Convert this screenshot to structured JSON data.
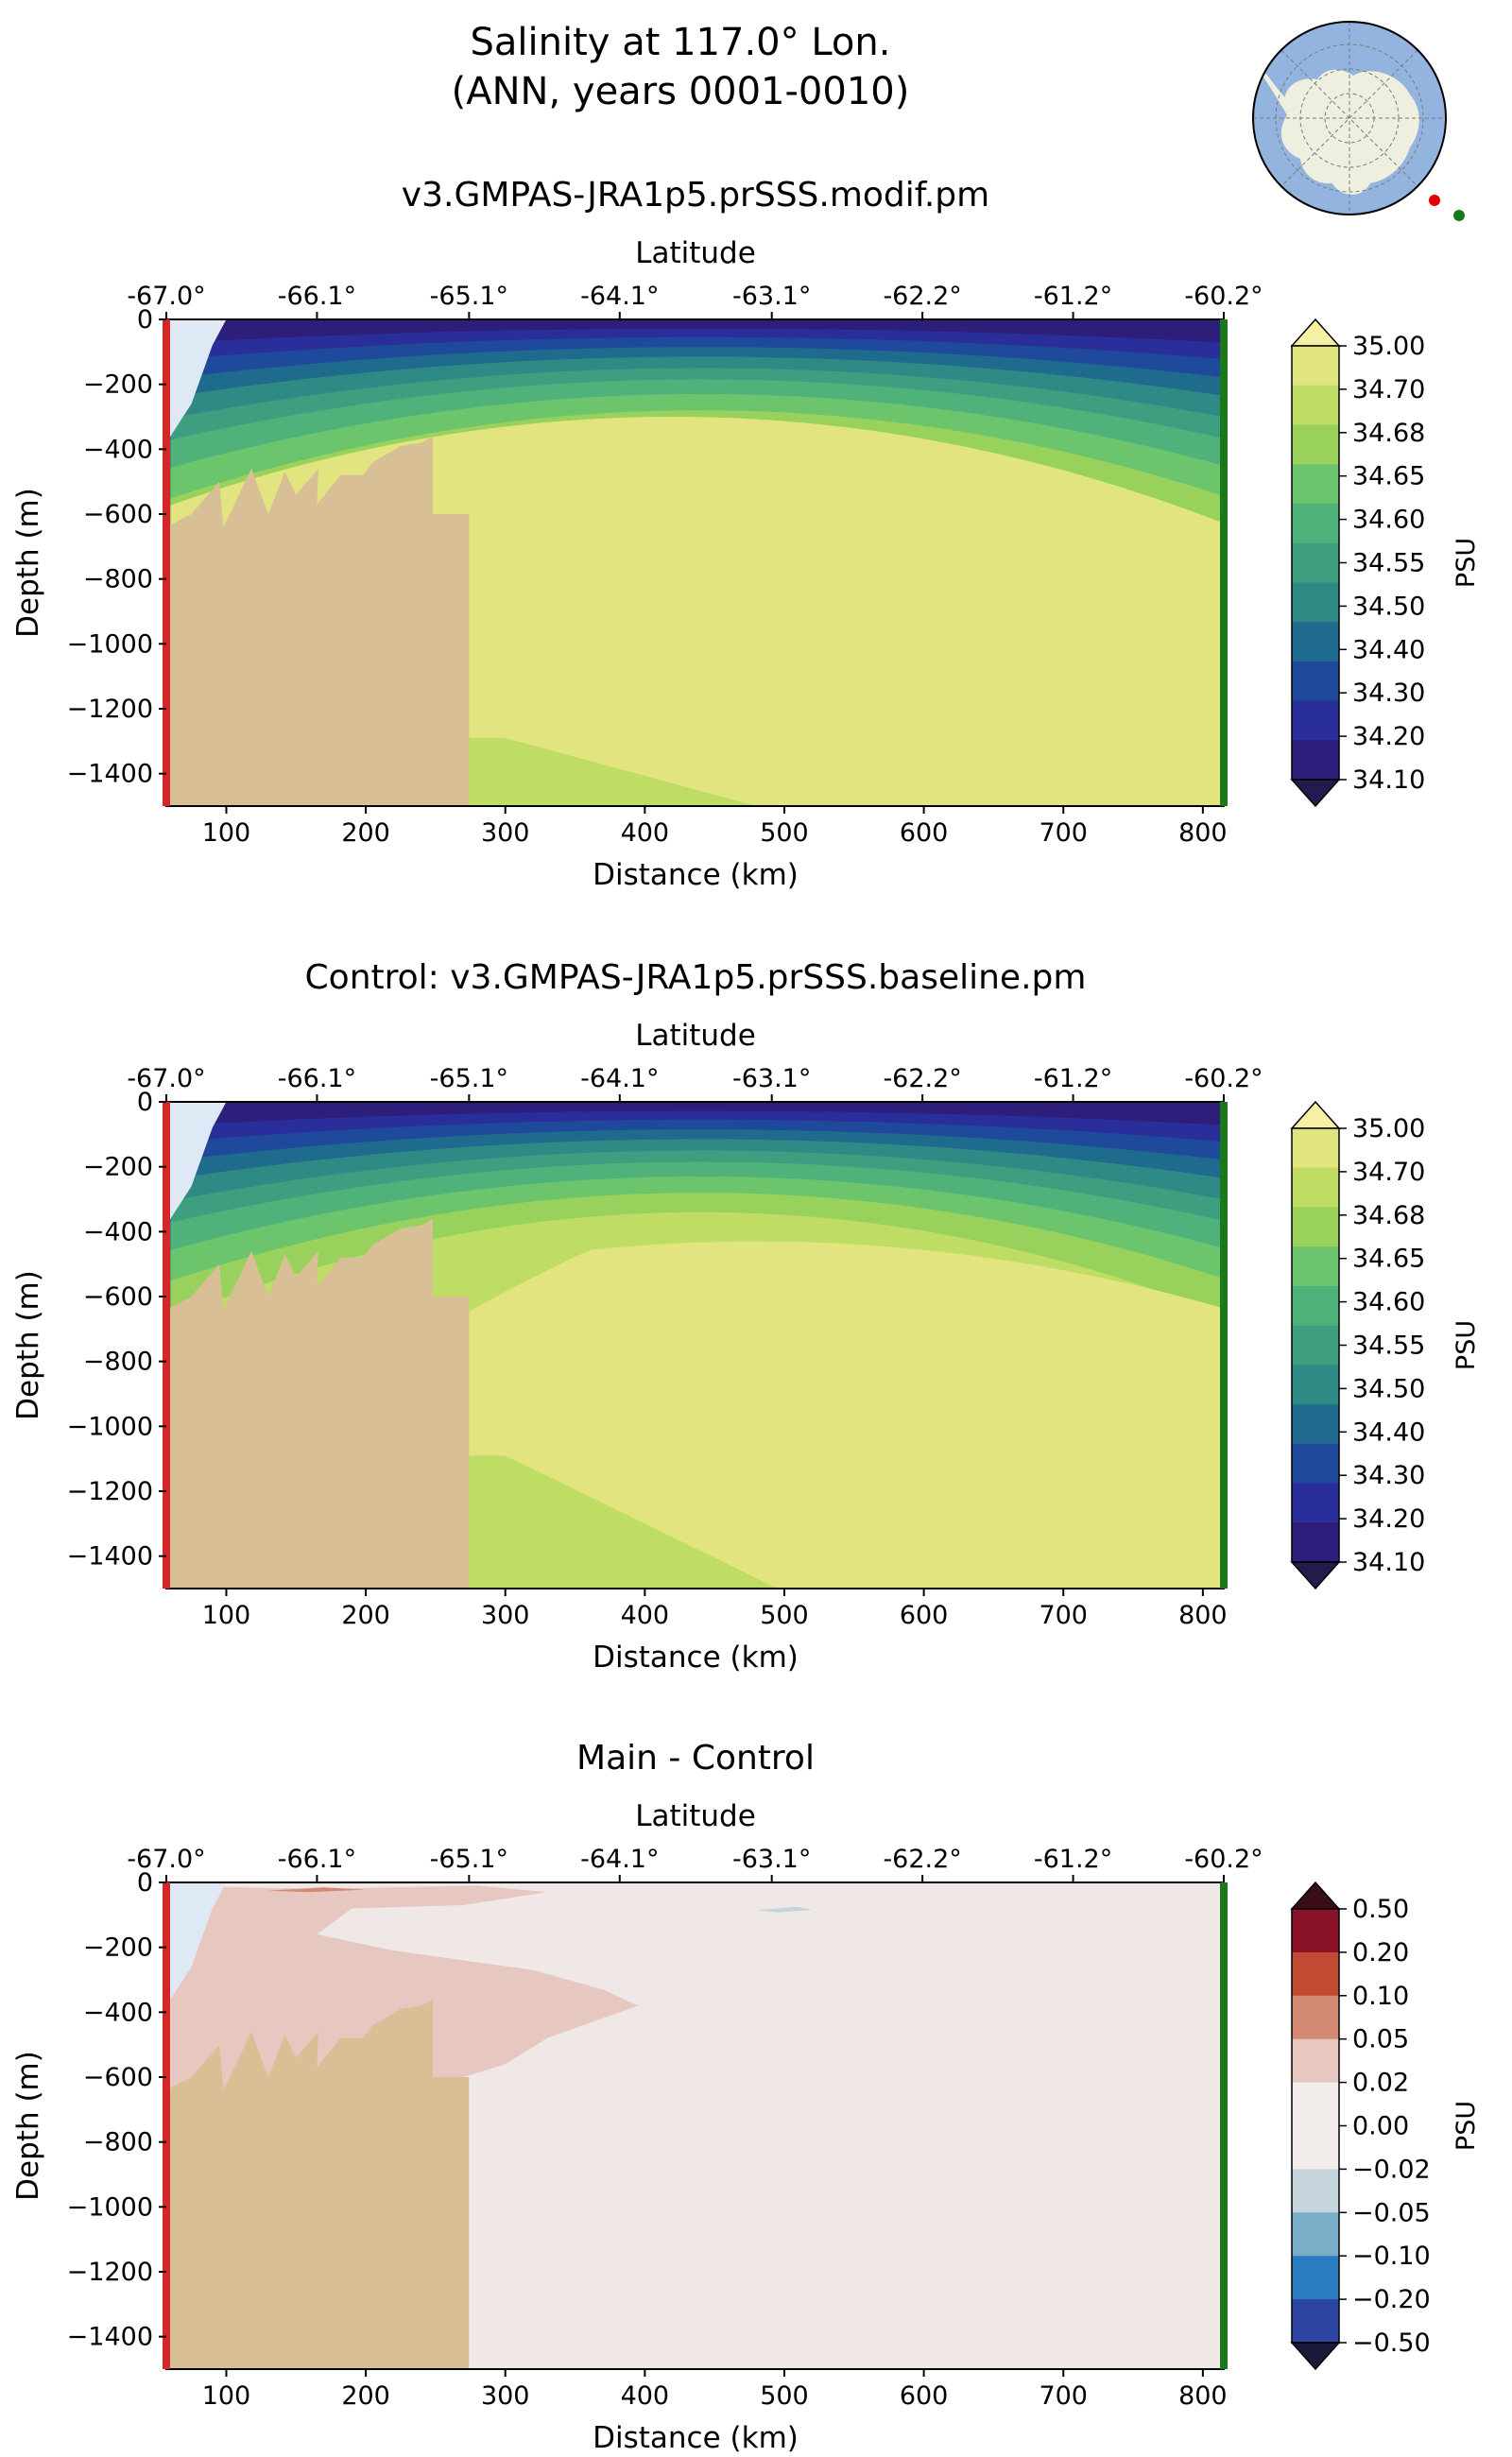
{
  "figure": {
    "title_line1": "Salinity at 117.0° Lon.",
    "title_line2": "(ANN, years 0001-0010)"
  },
  "chart_data": [
    {
      "type": "heatmap",
      "title": "v3.GMPAS-JRA1p5.prSSS.modif.pm",
      "xlabel": "Distance (km)",
      "ylabel": "Depth (m)",
      "top_xlabel": "Latitude",
      "xlim": [
        57,
        815
      ],
      "ylim": [
        -1500,
        0
      ],
      "x_ticks": [
        100,
        200,
        300,
        400,
        500,
        600,
        700,
        800
      ],
      "x_tick_labels": [
        "100",
        "200",
        "300",
        "400",
        "500",
        "600",
        "700",
        "800"
      ],
      "y_ticks": [
        0,
        -200,
        -400,
        -600,
        -800,
        -1000,
        -1200,
        -1400
      ],
      "y_tick_labels": [
        "0",
        "−200",
        "−400",
        "−600",
        "−800",
        "−1000",
        "−1200",
        "−1400"
      ],
      "top_ticks_km": [
        57,
        165,
        274,
        382,
        491,
        599,
        707,
        815
      ],
      "top_tick_labels": [
        "-67.0°",
        "-66.1°",
        "-65.1°",
        "-64.1°",
        "-63.1°",
        "-62.2°",
        "-61.2°",
        "-60.2°"
      ],
      "colorbar_label": "PSU",
      "levels": [
        "34.10",
        "34.20",
        "34.30",
        "34.40",
        "34.50",
        "34.55",
        "34.60",
        "34.65",
        "34.68",
        "34.70",
        "35.00"
      ],
      "colors": [
        "#2d1e7b",
        "#2a2e9a",
        "#1f4a9b",
        "#1f6b8e",
        "#2f8a86",
        "#3e9e80",
        "#4fb27a",
        "#6cc46d",
        "#98d25c",
        "#bfdd64",
        "#e2e47f"
      ],
      "under_color": "#231b4e",
      "over_color": "#f5f0a4",
      "mode": "modif"
    },
    {
      "type": "heatmap",
      "title": "Control: v3.GMPAS-JRA1p5.prSSS.baseline.pm",
      "xlabel": "Distance (km)",
      "ylabel": "Depth (m)",
      "top_xlabel": "Latitude",
      "xlim": [
        57,
        815
      ],
      "ylim": [
        -1500,
        0
      ],
      "x_ticks": [
        100,
        200,
        300,
        400,
        500,
        600,
        700,
        800
      ],
      "x_tick_labels": [
        "100",
        "200",
        "300",
        "400",
        "500",
        "600",
        "700",
        "800"
      ],
      "y_ticks": [
        0,
        -200,
        -400,
        -600,
        -800,
        -1000,
        -1200,
        -1400
      ],
      "y_tick_labels": [
        "0",
        "−200",
        "−400",
        "−600",
        "−800",
        "−1000",
        "−1200",
        "−1400"
      ],
      "top_ticks_km": [
        57,
        165,
        274,
        382,
        491,
        599,
        707,
        815
      ],
      "top_tick_labels": [
        "-67.0°",
        "-66.1°",
        "-65.1°",
        "-64.1°",
        "-63.1°",
        "-62.2°",
        "-61.2°",
        "-60.2°"
      ],
      "colorbar_label": "PSU",
      "levels": [
        "34.10",
        "34.20",
        "34.30",
        "34.40",
        "34.50",
        "34.55",
        "34.60",
        "34.65",
        "34.68",
        "34.70",
        "35.00"
      ],
      "colors": [
        "#2d1e7b",
        "#2a2e9a",
        "#1f4a9b",
        "#1f6b8e",
        "#2f8a86",
        "#3e9e80",
        "#4fb27a",
        "#6cc46d",
        "#98d25c",
        "#bfdd64",
        "#e2e47f"
      ],
      "under_color": "#231b4e",
      "over_color": "#f5f0a4",
      "mode": "control"
    },
    {
      "type": "heatmap",
      "title": "Main - Control",
      "xlabel": "Distance (km)",
      "ylabel": "Depth (m)",
      "top_xlabel": "Latitude",
      "xlim": [
        57,
        815
      ],
      "ylim": [
        -1500,
        0
      ],
      "x_ticks": [
        100,
        200,
        300,
        400,
        500,
        600,
        700,
        800
      ],
      "x_tick_labels": [
        "100",
        "200",
        "300",
        "400",
        "500",
        "600",
        "700",
        "800"
      ],
      "y_ticks": [
        0,
        -200,
        -400,
        -600,
        -800,
        -1000,
        -1200,
        -1400
      ],
      "y_tick_labels": [
        "0",
        "−200",
        "−400",
        "−600",
        "−800",
        "−1000",
        "−1200",
        "−1400"
      ],
      "top_ticks_km": [
        57,
        165,
        274,
        382,
        491,
        599,
        707,
        815
      ],
      "top_tick_labels": [
        "-67.0°",
        "-66.1°",
        "-65.1°",
        "-64.1°",
        "-63.1°",
        "-62.2°",
        "-61.2°",
        "-60.2°"
      ],
      "colorbar_label": "PSU",
      "levels": [
        "−0.50",
        "−0.20",
        "−0.10",
        "−0.05",
        "−0.02",
        "0.00",
        "0.02",
        "0.05",
        "0.10",
        "0.20",
        "0.50"
      ],
      "colors": [
        "#2c45a0",
        "#2a7cc0",
        "#7aaec8",
        "#c5d3db",
        "#f1ebea",
        "#f1ebea",
        "#e6c8c0",
        "#d48a72",
        "#c04a32",
        "#8a1228"
      ],
      "under_color": "#1a1a3a",
      "over_color": "#3a0c16",
      "mode": "diff"
    }
  ],
  "colors": {
    "land": "#d8bf96",
    "ice_shelf": "#dfe8f5",
    "start_marker": "#d62728",
    "end_marker": "#1a7a1a",
    "inset_ocean": "#94b4e0",
    "inset_land": "#efefe0"
  }
}
